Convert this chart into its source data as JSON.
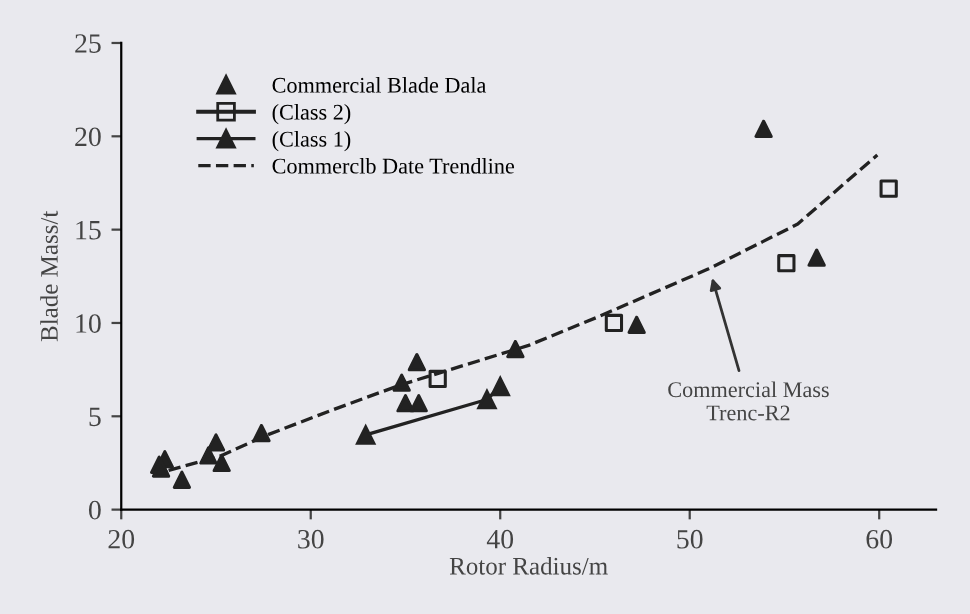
{
  "chart_data": {
    "type": "scatter",
    "xlabel": "Rotor Radius/m",
    "ylabel": "Blade Mass/t",
    "xlim": [
      20,
      63
    ],
    "ylim": [
      0,
      25
    ],
    "xticks": [
      20,
      30,
      40,
      50,
      60
    ],
    "yticks": [
      0,
      5,
      10,
      15,
      20,
      25
    ],
    "grid": false,
    "legend": "top left",
    "series": [
      {
        "name": "Commercial Blade Dala",
        "marker": "triangle",
        "color": "#222222",
        "x": [
          22.0,
          22.3,
          22.1,
          23.2,
          24.6,
          25.0,
          25.3,
          27.4,
          34.8,
          35.6,
          35.0,
          35.7,
          40.8,
          47.2,
          53.9,
          56.7
        ],
        "values": [
          2.4,
          2.7,
          2.2,
          1.6,
          2.9,
          3.6,
          2.5,
          4.1,
          6.8,
          7.9,
          5.7,
          5.7,
          8.6,
          9.9,
          20.4,
          13.5
        ]
      },
      {
        "name": "(Class 2)",
        "marker": "square",
        "color": "#222222",
        "x": [
          36.7,
          46.0,
          55.1,
          60.5
        ],
        "values": [
          7.0,
          10.0,
          13.2,
          17.2
        ]
      },
      {
        "name": "(Class 1)",
        "type": "line",
        "marker": "triangle",
        "line_style": "solid",
        "color": "#222222",
        "x": [
          32.9,
          39.3,
          40.0
        ],
        "values": [
          4.0,
          5.9,
          6.6
        ]
      },
      {
        "name": "Commerclb Date Trendline",
        "type": "line",
        "marker": "none",
        "line_style": "dashed",
        "color": "#222222",
        "x": [
          22.5,
          25.3,
          27.7,
          31.3,
          34.8,
          41.5,
          45.1,
          51.0,
          55.7,
          59.9
        ],
        "values": [
          2.1,
          2.9,
          4.0,
          5.4,
          6.7,
          8.8,
          10.3,
          12.9,
          15.3,
          19.0
        ]
      }
    ],
    "annotations": [
      {
        "text": "Commercial Mass\nTrenc-R2",
        "x": 51.1,
        "y": 12.7
      }
    ]
  }
}
